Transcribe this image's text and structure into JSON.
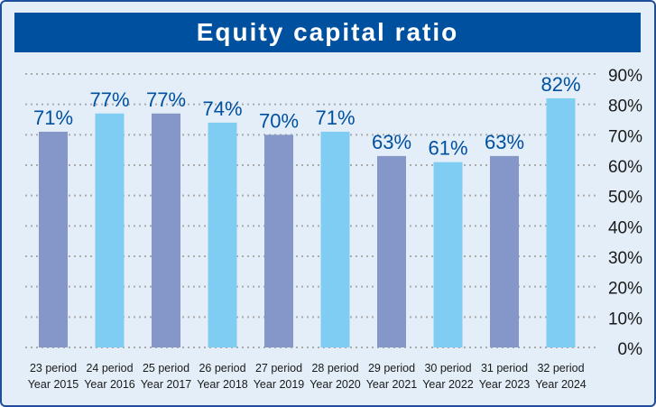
{
  "chart_data": {
    "type": "bar",
    "title": "Equity capital ratio",
    "categories": [
      [
        "23 period",
        "Year 2015"
      ],
      [
        "24 period",
        "Year 2016"
      ],
      [
        "25 period",
        "Year 2017"
      ],
      [
        "26 period",
        "Year 2018"
      ],
      [
        "27 period",
        "Year 2019"
      ],
      [
        "28 period",
        "Year 2020"
      ],
      [
        "29 period",
        "Year 2021"
      ],
      [
        "30 period",
        "Year 2022"
      ],
      [
        "31 period",
        "Year 2023"
      ],
      [
        "32 period",
        "Year 2024"
      ]
    ],
    "values": [
      71,
      77,
      77,
      74,
      70,
      71,
      63,
      61,
      63,
      82
    ],
    "value_labels": [
      "71%",
      "77%",
      "77%",
      "74%",
      "70%",
      "71%",
      "63%",
      "61%",
      "63%",
      "82%"
    ],
    "ylim": [
      0,
      90
    ],
    "yticks": [
      0,
      10,
      20,
      30,
      40,
      50,
      60,
      70,
      80,
      90
    ],
    "ytick_labels": [
      "0%",
      "10%",
      "20%",
      "30%",
      "40%",
      "50%",
      "60%",
      "70%",
      "80%",
      "90%"
    ],
    "y_axis_side": "right",
    "grid": "dotted horizontal",
    "xlabel": "",
    "ylabel": "",
    "colors": {
      "bar_odd": "#8497c8",
      "bar_even": "#7fcdf2",
      "value_label": "#0050a0",
      "title_bg": "#0050a0",
      "background": "#e3eef8",
      "grid": "#aaaaaa"
    }
  }
}
